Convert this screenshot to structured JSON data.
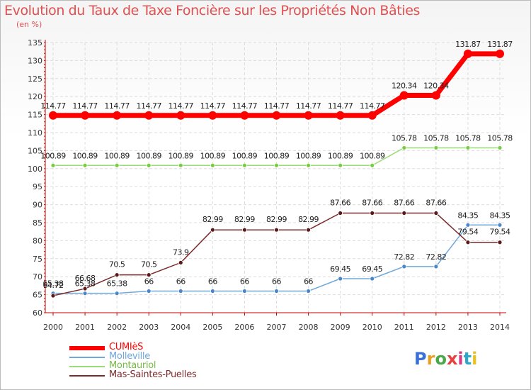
{
  "title": "Evolution du Taux de Taxe Foncière sur les Propriétés Non Bâties",
  "unit_label": "(en %)",
  "logo_text": "Proxiti",
  "chart_data": {
    "type": "line",
    "x": [
      "2000",
      "2001",
      "2002",
      "2003",
      "2004",
      "2005",
      "2006",
      "2007",
      "2008",
      "2009",
      "2010",
      "2011",
      "2012",
      "2013",
      "2014"
    ],
    "ylim": [
      60,
      135
    ],
    "yticks": [
      "60",
      "65",
      "70",
      "75",
      "80",
      "85",
      "90",
      "95",
      "100",
      "105",
      "110",
      "115",
      "120",
      "125",
      "130",
      "135"
    ],
    "series": [
      {
        "name": "CUMIèS",
        "color": "#ff0000",
        "marker_fill": "#ff0000",
        "values": [
          114.77,
          114.77,
          114.77,
          114.77,
          114.77,
          114.77,
          114.77,
          114.77,
          114.77,
          114.77,
          114.77,
          120.34,
          120.34,
          131.87,
          131.87
        ],
        "labels": [
          "114.77",
          "114.77",
          "114.77",
          "114.77",
          "114.77",
          "114.77",
          "114.77",
          "114.77",
          "114.77",
          "114.77",
          "114.77",
          "120.34",
          "120.34",
          "131.87",
          "131.87"
        ]
      },
      {
        "name": "Molleville",
        "color": "#6fa8dc",
        "marker_fill": "#4a86c8",
        "values": [
          65.38,
          65.38,
          65.38,
          66,
          66,
          66,
          66,
          66,
          66,
          69.45,
          69.45,
          72.82,
          72.82,
          84.35,
          84.35
        ],
        "labels": [
          "65.38",
          "65.38",
          "65.38",
          "66",
          "66",
          "66",
          "66",
          "66",
          "66",
          "69.45",
          "69.45",
          "72.82",
          "72.82",
          "84.35",
          "84.35"
        ]
      },
      {
        "name": "Montauriol",
        "color": "#99dd77",
        "marker_fill": "#77cc44",
        "values": [
          100.89,
          100.89,
          100.89,
          100.89,
          100.89,
          100.89,
          100.89,
          100.89,
          100.89,
          100.89,
          100.89,
          105.78,
          105.78,
          105.78,
          105.78
        ],
        "labels": [
          "100.89",
          "100.89",
          "100.89",
          "100.89",
          "100.89",
          "100.89",
          "100.89",
          "100.89",
          "100.89",
          "100.89",
          "100.89",
          "105.78",
          "105.78",
          "105.78",
          "105.78"
        ]
      },
      {
        "name": "Mas-Saintes-Puelles",
        "color": "#7b2b2b",
        "marker_fill": "#5a1a1a",
        "values": [
          64.72,
          66.68,
          70.5,
          70.5,
          73.9,
          82.99,
          82.99,
          82.99,
          82.99,
          87.66,
          87.66,
          87.66,
          87.66,
          79.54,
          79.54
        ],
        "labels": [
          "64.72",
          "66.68",
          "70.5",
          "70.5",
          "73.9",
          "82.99",
          "82.99",
          "82.99",
          "82.99",
          "87.66",
          "87.66",
          "87.66",
          "87.66",
          "79.54",
          "79.54"
        ]
      }
    ]
  }
}
